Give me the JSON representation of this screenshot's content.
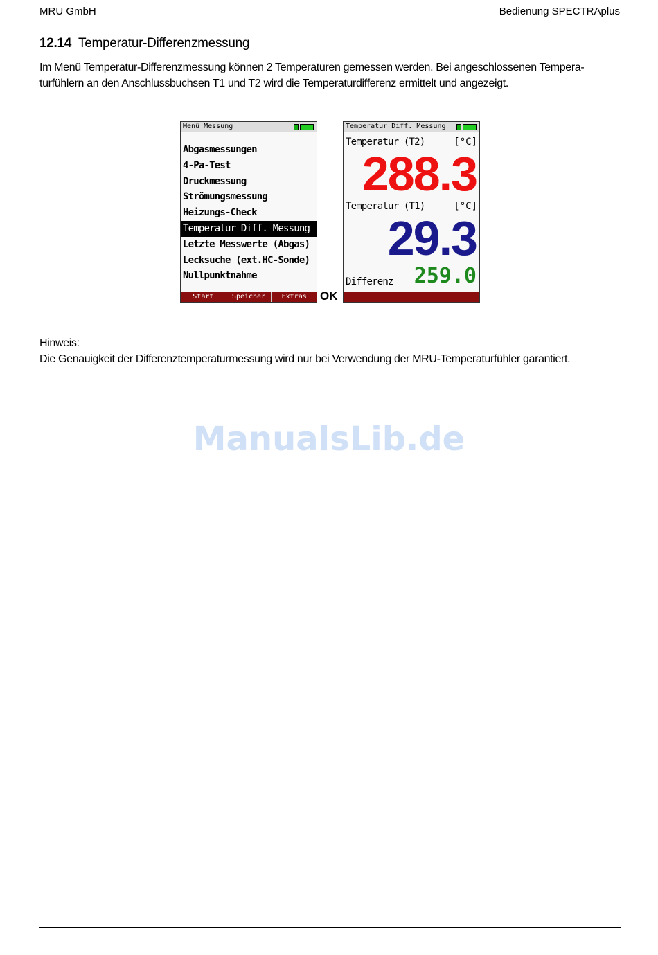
{
  "header": {
    "left": "MRU GmbH",
    "right": "Bedienung SPECTRAplus"
  },
  "section": {
    "number": "12.14",
    "title": "Temperatur-Differenzmessung"
  },
  "intro": [
    "Im Menü Temperatur-Differenzmessung können 2 Temperaturen gemessen werden. Bei angeschlossenen Tempera-",
    "turfühlern an den Anschlussbuchsen T1 und T2 wird die Temperaturdifferenz ermittelt und angezeigt."
  ],
  "screen1": {
    "title": "Menü Messung",
    "items": [
      "Abgasmessungen",
      "4-Pa-Test",
      "Druckmessung",
      "Strömungsmessung",
      "Heizungs-Check",
      "Temperatur Diff. Messung",
      "Letzte Messwerte (Abgas)",
      "Lecksuche (ext.HC-Sonde)",
      "Nullpunktnahme"
    ],
    "selected": 5,
    "softkeys": [
      "Start",
      "Speicher",
      "Extras"
    ]
  },
  "ok_label": "OK",
  "screen2": {
    "title": "Temperatur Diff. Messung",
    "t2_label": "Temperatur (T2)",
    "t2_unit": "[°C]",
    "t2_value": "288.3",
    "t1_label": "Temperatur (T1)",
    "t1_unit": "[°C]",
    "t1_value": "29.3",
    "diff_label": "Differenz",
    "diff_value": "259.0"
  },
  "colors": {
    "t2": "#ee1111",
    "t1": "#1a1a8c",
    "diff": "#1e8a1e",
    "softkey_bar": "#8b0e0e"
  },
  "note": {
    "label": "Hinweis:",
    "text": "Die Genauigkeit der Differenztemperaturmessung wird nur bei Verwendung der MRU-Temperaturfühler garantiert."
  },
  "watermark": "ManualsLib.de"
}
